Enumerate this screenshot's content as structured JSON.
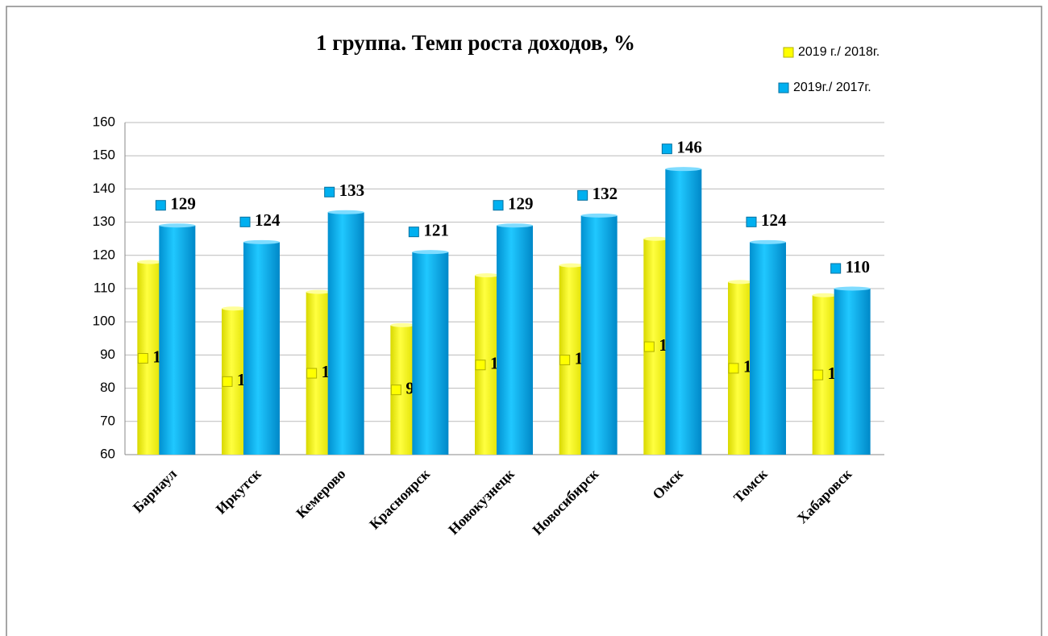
{
  "chart_data": {
    "type": "bar",
    "title": "1 группа. Темп роста доходов, %",
    "categories": [
      "Барнаул",
      "Иркутск",
      "Кемерово",
      "Красноярск",
      "Новокузнецк",
      "Новосибирск",
      "Омск",
      "Томск",
      "Хабаровск"
    ],
    "series": [
      {
        "name": "2019 г./ 2018г.",
        "color": "#ffff00",
        "values": [
          118,
          104,
          109,
          99,
          114,
          117,
          125,
          112,
          108
        ]
      },
      {
        "name": "2019г./ 2017г.",
        "color": "#00b0f0",
        "values": [
          129,
          124,
          133,
          121,
          129,
          132,
          146,
          124,
          110
        ]
      }
    ],
    "ylim": [
      60,
      160
    ],
    "yticks": [
      60,
      70,
      80,
      90,
      100,
      110,
      120,
      130,
      140,
      150,
      160
    ],
    "grid": true,
    "legend": "top-right"
  }
}
